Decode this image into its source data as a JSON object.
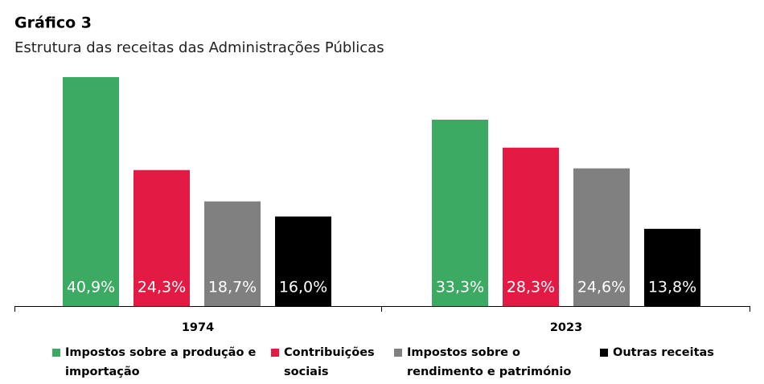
{
  "chart_data": {
    "type": "bar",
    "title": "Gráfico 3",
    "subtitle": "Estrutura das receitas das Administrações Públicas",
    "categories": [
      "1974",
      "2023"
    ],
    "series": [
      {
        "name": "Impostos sobre a produção e importação",
        "color": "#3daa63",
        "values": [
          40.9,
          33.3
        ],
        "value_labels": [
          "40,9%",
          "33,3%"
        ]
      },
      {
        "name": "Contribuições sociais",
        "color": "#e31b44",
        "values": [
          24.3,
          28.3
        ],
        "value_labels": [
          "24,3%",
          "28,3%"
        ]
      },
      {
        "name": "Impostos sobre o rendimento e património",
        "color": "#808080",
        "values": [
          18.7,
          24.6
        ],
        "value_labels": [
          "18,7%",
          "24,6%"
        ]
      },
      {
        "name": "Outras receitas",
        "color": "#000000",
        "values": [
          16.0,
          13.8
        ],
        "value_labels": [
          "16,0%",
          "13,8%"
        ]
      }
    ]
  }
}
